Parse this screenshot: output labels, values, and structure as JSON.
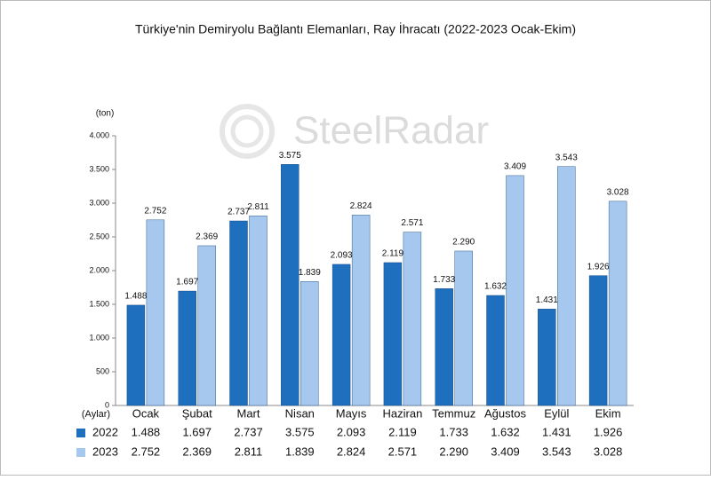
{
  "chart_data": {
    "type": "bar",
    "title": "Türkiye'nin Demiryolu Bağlantı Elemanları, Ray İhracatı (2022-2023 Ocak-Ekim)",
    "watermark": "SteelRadar",
    "y_label": "(ton)",
    "x_label": "(Aylar)",
    "categories": [
      "Ocak",
      "Şubat",
      "Mart",
      "Nisan",
      "Mayıs",
      "Haziran",
      "Temmuz",
      "Ağustos",
      "Eylül",
      "Ekim"
    ],
    "series": [
      {
        "name": "2022",
        "color": "#1f6fbf",
        "values": [
          1488,
          1697,
          2737,
          3575,
          2093,
          2119,
          1733,
          1632,
          1431,
          1926
        ],
        "value_labels": [
          "1.488",
          "1.697",
          "2.737",
          "3.575",
          "2.093",
          "2.119",
          "1.733",
          "1.632",
          "1.431",
          "1.926"
        ]
      },
      {
        "name": "2023",
        "color": "#a7c8ee",
        "values": [
          2752,
          2369,
          2811,
          1839,
          2824,
          2571,
          2290,
          3409,
          3543,
          3028
        ],
        "value_labels": [
          "2.752",
          "2.369",
          "2.811",
          "1.839",
          "2.824",
          "2.571",
          "2.290",
          "3.409",
          "3.543",
          "3.028"
        ]
      }
    ],
    "ylim": [
      0,
      4000
    ],
    "yticks": [
      0,
      500,
      {
        "value": 1000,
        "label": "1.000"
      },
      {
        "value": 1500,
        "label": "1.500"
      },
      {
        "value": 2000,
        "label": "2.000"
      },
      {
        "value": 2500,
        "label": "2.500"
      },
      {
        "value": 3000,
        "label": "3.000"
      },
      {
        "value": 3500,
        "label": "3.500"
      },
      {
        "value": 4000,
        "label": "4.000"
      }
    ],
    "grid": false
  }
}
